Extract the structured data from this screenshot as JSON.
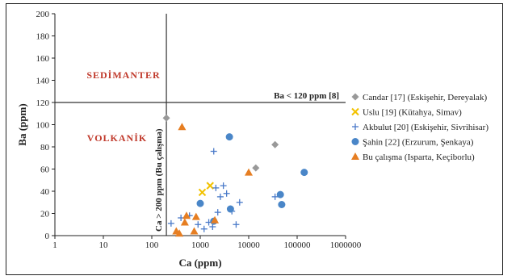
{
  "chart_data": {
    "type": "scatter",
    "title": "",
    "xlabel": "Ca (ppm)",
    "ylabel": "Ba (ppm)",
    "x_scale": "log",
    "xlim": [
      1,
      1000000
    ],
    "ylim": [
      0,
      200
    ],
    "x_ticks": [
      1,
      10,
      100,
      1000,
      10000,
      100000,
      1000000
    ],
    "x_tick_labels": [
      "1",
      "10",
      "100",
      "1000",
      "10000",
      "100000",
      "1000000"
    ],
    "y_ticks": [
      0,
      20,
      40,
      60,
      80,
      100,
      120,
      140,
      160,
      180,
      200
    ],
    "y_tick_labels": [
      "0",
      "20",
      "40",
      "60",
      "80",
      "100",
      "120",
      "140",
      "160",
      "180",
      "200"
    ],
    "grid": false,
    "legend_position": "right",
    "reference_lines": {
      "horizontal": {
        "y": 120,
        "label": "Ba < 120 ppm [8]"
      },
      "vertical": {
        "x": 200,
        "label": "Ca > 200 ppm (Bu çalışma)"
      }
    },
    "region_labels": {
      "upper": "SEDİMANTER",
      "lower": "VOLKANİK"
    },
    "colors": {
      "region_text": "#c0392b",
      "candar": "#999999",
      "uslu": "#f2c200",
      "akbulut": "#4a7ac9",
      "sahin": "#4a86c8",
      "bu_calisma": "#e67e22"
    },
    "series": [
      {
        "name": "Candar [17] (Eskişehir, Dereyalak)",
        "marker": "diamond",
        "x": [
          200,
          14000,
          35000
        ],
        "y": [
          106,
          61,
          82
        ]
      },
      {
        "name": "Uslu [19] (Kütahya, Simav)",
        "marker": "x",
        "x": [
          1100,
          1600
        ],
        "y": [
          39,
          45
        ]
      },
      {
        "name": "Akbulut [20] (Eskişehir, Sivrihisar)",
        "marker": "plus",
        "x": [
          250,
          400,
          600,
          900,
          1200,
          1500,
          1800,
          1900,
          2100,
          2300,
          2600,
          3000,
          3500,
          4500,
          5500,
          6500,
          35000
        ],
        "y": [
          11,
          16,
          18,
          10,
          6,
          12,
          8,
          76,
          43,
          21,
          35,
          45,
          38,
          22,
          10,
          30,
          35
        ]
      },
      {
        "name": "Şahin [22] (Erzurum, Şenkaya)",
        "marker": "circle",
        "x": [
          1000,
          1900,
          4000,
          4200,
          45000,
          48000,
          140000
        ],
        "y": [
          29,
          13,
          89,
          24,
          37,
          28,
          57
        ]
      },
      {
        "name": "Bu çalışma (Isparta, Keçiborlu)",
        "marker": "triangle",
        "x": [
          320,
          370,
          420,
          480,
          520,
          750,
          820,
          2000,
          10000
        ],
        "y": [
          4,
          2,
          98,
          12,
          18,
          4,
          17,
          14,
          57
        ]
      }
    ]
  }
}
